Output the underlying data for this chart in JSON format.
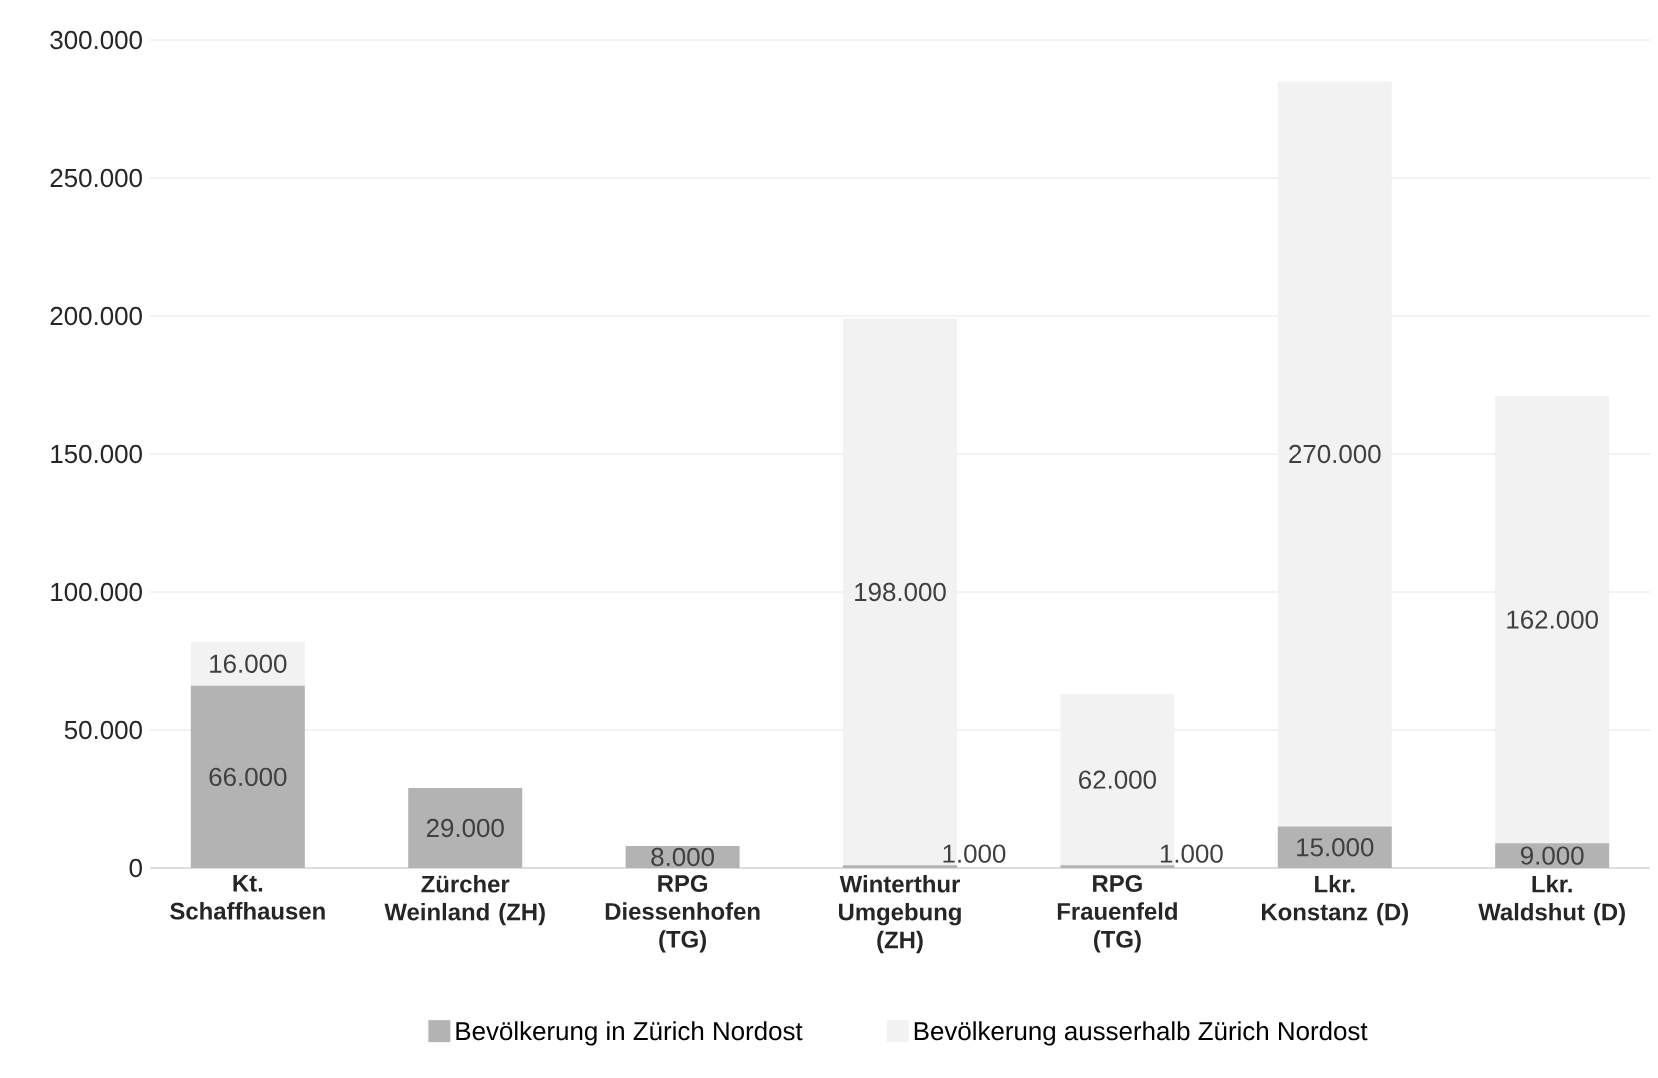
{
  "chart_data": {
    "type": "bar",
    "stacked": true,
    "categories": [
      "Kt. Schaffhausen",
      "Zürcher Weinland (ZH)",
      "RPG Diessenhofen (TG)",
      "Winterthur Umgebung (ZH)",
      "RPG Frauenfeld (TG)",
      "Lkr. Konstanz (D)",
      "Lkr. Waldshut (D)"
    ],
    "series": [
      {
        "name": "Bevölkerung in Zürich Nordost",
        "color": "#b3b3b3",
        "values": [
          66000,
          29000,
          8000,
          1000,
          1000,
          15000,
          9000
        ],
        "value_labels": [
          "66.000",
          "29.000",
          "8.000",
          "1.000",
          "1.000",
          "15.000",
          "9.000"
        ]
      },
      {
        "name": "Bevölkerung ausserhalb Zürich Nordost",
        "color": "#f2f2f2",
        "values": [
          16000,
          0,
          0,
          198000,
          62000,
          270000,
          162000
        ],
        "value_labels": [
          "16.000",
          null,
          null,
          "198.000",
          "62.000",
          "270.000",
          "162.000"
        ]
      }
    ],
    "ylim": [
      0,
      300000
    ],
    "yticks": [
      0,
      {
        "value": 50000,
        "label": "50.000"
      },
      {
        "value": 100000,
        "label": "100.000"
      },
      {
        "value": 150000,
        "label": "150.000"
      },
      {
        "value": 200000,
        "label": "200.000"
      },
      {
        "value": 250000,
        "label": "250.000"
      },
      {
        "value": 300000,
        "label": "300.000"
      }
    ],
    "grid": "y",
    "legend": "bottom"
  }
}
